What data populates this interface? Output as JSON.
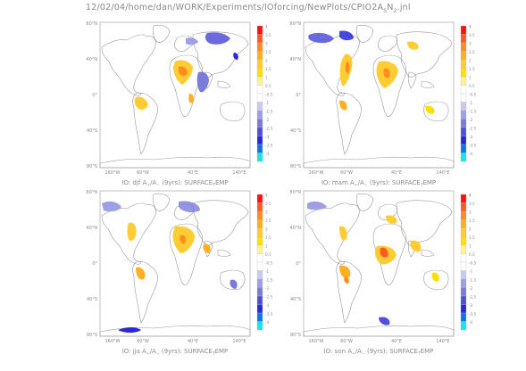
{
  "header": {
    "path_text": "12/02/04/home/dan/WORK/Experiments/IOforcing/NewPlots/CPIO2A",
    "sub1": "S",
    "mid": "N",
    "sub2": "2",
    "suffix": ".jnl"
  },
  "chart_data": [
    {
      "type": "heatmap",
      "title_prefix": "IO: djf A",
      "title_sub1": "+",
      "title_mid": "/A",
      "title_sub2": "−",
      "title_suffix": " (9yrs): SURFACE",
      "title_sub3": "T",
      "title_end": "EMP",
      "xticks": [
        "160°W",
        "60°W",
        "40°E",
        "140°E"
      ],
      "yticks": [
        "80°N",
        "40°N",
        "0°",
        "40°S",
        "80°S"
      ],
      "colorbar": {
        "ticks": [
          "4",
          "3.5",
          "3",
          "2.5",
          "2",
          "1.5",
          "1",
          "0.5",
          "-0.5",
          "-1",
          "-1.5",
          "-2",
          "-2.5",
          "-3",
          "-3.5",
          "-4"
        ]
      }
    },
    {
      "type": "heatmap",
      "title_prefix": "IO: mam A",
      "title_sub1": "+",
      "title_mid": "/A",
      "title_sub2": "−",
      "title_suffix": " (9yrs): SURFACE",
      "title_sub3": "T",
      "title_end": "EMP",
      "xticks": [
        "160°W",
        "60°W",
        "40°E",
        "140°E"
      ],
      "yticks": [
        "80°N",
        "40°N",
        "0°",
        "40°S",
        "80°S"
      ],
      "colorbar": {
        "ticks": [
          "4",
          "3.5",
          "3",
          "2.5",
          "2",
          "1.5",
          "1",
          "0.5",
          "-0.5",
          "-1",
          "-1.5",
          "-2",
          "-2.5",
          "-3",
          "-3.5",
          "-4"
        ]
      }
    },
    {
      "type": "heatmap",
      "title_prefix": "IO: jja A",
      "title_sub1": "+",
      "title_mid": "/A",
      "title_sub2": "−",
      "title_suffix": " (9yrs): SURFACE",
      "title_sub3": "T",
      "title_end": "EMP",
      "xticks": [
        "160°W",
        "60°W",
        "40°E",
        "140°E"
      ],
      "yticks": [
        "80°N",
        "40°N",
        "0°",
        "40°S",
        "80°S"
      ],
      "colorbar": {
        "ticks": [
          "4",
          "3.5",
          "3",
          "2.5",
          "2",
          "1.5",
          "1",
          "0.5",
          "-0.5",
          "-1",
          "-1.5",
          "-2",
          "-2.5",
          "-3",
          "-3.5",
          "-4"
        ]
      }
    },
    {
      "type": "heatmap",
      "title_prefix": "IO: son A",
      "title_sub1": "+",
      "title_mid": "/A",
      "title_sub2": "−",
      "title_suffix": " (9yrs): SURFACE",
      "title_sub3": "T",
      "title_end": "EMP",
      "xticks": [
        "160°W",
        "60°W",
        "40°E",
        "140°E"
      ],
      "yticks": [
        "80°N",
        "40°N",
        "0°",
        "40°S",
        "80°S"
      ],
      "colorbar": {
        "ticks": [
          "4",
          "3.5",
          "3",
          "2.5",
          "2",
          "1.5",
          "1",
          "0.5",
          "-0.5",
          "-1",
          "-1.5",
          "-2",
          "-2.5",
          "-3",
          "-3.5",
          "-4"
        ]
      }
    }
  ],
  "colors": {
    "scale": [
      "#ff1010",
      "#ff5a20",
      "#ff8c1e",
      "#ffb020",
      "#ffcc33",
      "#ffe000",
      "#fff38a",
      "#ffffff",
      "#ffffff",
      "#c9c9f2",
      "#9f9fe6",
      "#7b7bdc",
      "#5050d8",
      "#2828d8",
      "#0a78e6",
      "#18e6e6"
    ],
    "land_outline": "#9a9a9a",
    "axis": "#9a9a9a"
  }
}
